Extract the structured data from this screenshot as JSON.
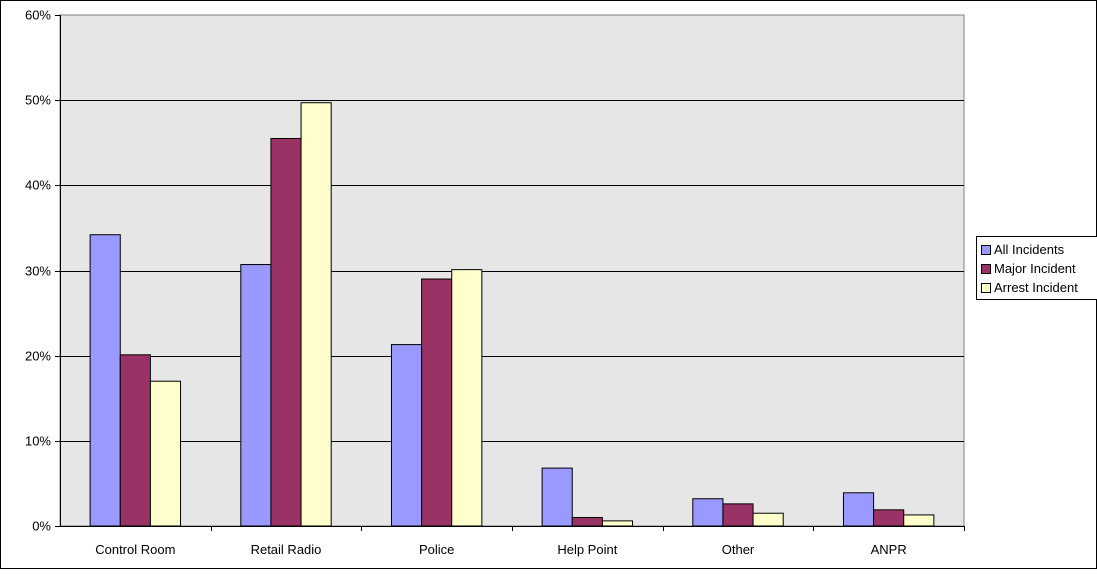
{
  "chart_data": {
    "type": "bar",
    "categories": [
      "Control Room",
      "Retail Radio",
      "Police",
      "Help Point",
      "Other",
      "ANPR"
    ],
    "series": [
      {
        "name": "All Incidents",
        "color": "#9999ff",
        "values": [
          34.2,
          30.7,
          21.3,
          6.8,
          3.2,
          3.9
        ]
      },
      {
        "name": "Major Incident",
        "color": "#993366",
        "values": [
          20.1,
          45.5,
          29.0,
          1.0,
          2.6,
          1.9
        ]
      },
      {
        "name": "Arrest Incident",
        "color": "#ffffcc",
        "values": [
          17.0,
          49.7,
          30.1,
          0.6,
          1.5,
          1.3
        ]
      }
    ],
    "y_ticks": [
      "0%",
      "10%",
      "20%",
      "30%",
      "40%",
      "50%",
      "60%"
    ],
    "ylim": [
      0,
      60
    ],
    "y_unit": "%",
    "grid": true,
    "plot_background": "#e6e6e6",
    "legend_position": "right"
  }
}
